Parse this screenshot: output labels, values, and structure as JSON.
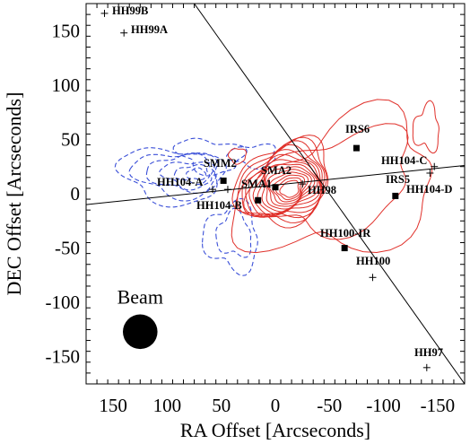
{
  "chart_data": {
    "type": "contour",
    "xlabel": "RA Offset [Arcseconds]",
    "ylabel": "DEC Offset [Arcseconds]",
    "xlim": [
      175,
      -175
    ],
    "ylim": [
      -175,
      175
    ],
    "x_ticks": [
      150,
      100,
      50,
      0,
      -50,
      -100,
      -150
    ],
    "x_tick_labels": [
      "150",
      "100",
      "50",
      "0",
      "-50",
      "-100",
      "-150"
    ],
    "y_ticks": [
      150,
      100,
      50,
      0,
      -50,
      -100,
      -150
    ],
    "y_tick_labels": [
      "150",
      "100",
      "50",
      "0",
      "-50",
      "-100",
      "-150"
    ],
    "contour_colors": {
      "redshifted": "#e0302a",
      "blueshifted": "#3a4fd8"
    },
    "beam": {
      "label": "Beam",
      "x": 125,
      "y": -127,
      "radius": 16
    },
    "outflow_axes": [
      {
        "x1": 175,
        "y1": -10,
        "x2": -175,
        "y2": 26
      },
      {
        "x1": 75,
        "y1": 175,
        "x2": -175,
        "y2": -175
      }
    ],
    "square_sources": [
      {
        "name": "SMM2",
        "x": 48,
        "y": 12
      },
      {
        "name": "SMA2",
        "x": 0,
        "y": 6
      },
      {
        "name": "SMA1",
        "x": 16,
        "y": -6
      },
      {
        "name": "IRS6",
        "x": -75,
        "y": 42
      },
      {
        "name": "IRS5",
        "x": -111,
        "y": -2
      },
      {
        "name": "HH100-IR",
        "x": -64,
        "y": -50
      }
    ],
    "cross_sources": [
      {
        "name": "HH99B",
        "x": 158,
        "y": 166
      },
      {
        "name": "HH99A",
        "x": 140,
        "y": 148
      },
      {
        "name": "HH104-A",
        "x": 58,
        "y": 4
      },
      {
        "name": "HH104-B",
        "x": 44,
        "y": 4
      },
      {
        "name": "HH98",
        "x": -25,
        "y": 9
      },
      {
        "name": "HH104-C",
        "x": -147,
        "y": 25
      },
      {
        "name": "HH104-D",
        "x": -143,
        "y": 19
      },
      {
        "name": "HH100",
        "x": -90,
        "y": -77
      },
      {
        "name": "HH97",
        "x": -140,
        "y": -160
      }
    ]
  },
  "labels": {
    "HH99B": "HH99B",
    "HH99A": "HH99A",
    "SMM2": "SMM2",
    "SMA2": "SMA2",
    "SMA1": "SMA1",
    "HH104_A": "HH104-A",
    "HH104_B": "HH104-B",
    "HH98": "HH98",
    "IRS6": "IRS6",
    "HH104_C": "HH104-C",
    "IRS5": "IRS5",
    "HH104_D": "HH104-D",
    "HH100_IR": "HH100-IR",
    "HH100": "HH100",
    "HH97": "HH97"
  }
}
